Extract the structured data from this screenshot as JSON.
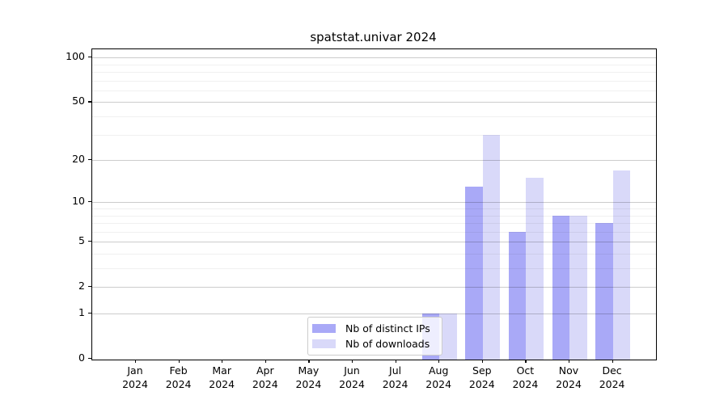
{
  "title": "spatstat.univar 2024",
  "legend": {
    "items": [
      {
        "label": "Nb of distinct IPs",
        "color": "#a9a9f7"
      },
      {
        "label": "Nb of downloads",
        "color": "#d9d9f9"
      }
    ]
  },
  "axes": {
    "y_tick_labels": [
      "0",
      "1",
      "2",
      "5",
      "10",
      "20",
      "50",
      "100"
    ],
    "y_tick_values": [
      0,
      1,
      2,
      5,
      10,
      20,
      50,
      100
    ],
    "y_minor_values": [
      3,
      4,
      6,
      7,
      8,
      9,
      30,
      40,
      60,
      70,
      80,
      90
    ],
    "x_tick_labels": [
      [
        "Jan",
        "2024"
      ],
      [
        "Feb",
        "2024"
      ],
      [
        "Mar",
        "2024"
      ],
      [
        "Apr",
        "2024"
      ],
      [
        "May",
        "2024"
      ],
      [
        "Jun",
        "2024"
      ],
      [
        "Jul",
        "2024"
      ],
      [
        "Aug",
        "2024"
      ],
      [
        "Sep",
        "2024"
      ],
      [
        "Oct",
        "2024"
      ],
      [
        "Nov",
        "2024"
      ],
      [
        "Dec",
        "2024"
      ]
    ]
  },
  "chart_data": {
    "type": "bar",
    "title": "spatstat.univar 2024",
    "categories": [
      "Jan 2024",
      "Feb 2024",
      "Mar 2024",
      "Apr 2024",
      "May 2024",
      "Jun 2024",
      "Jul 2024",
      "Aug 2024",
      "Sep 2024",
      "Oct 2024",
      "Nov 2024",
      "Dec 2024"
    ],
    "series": [
      {
        "name": "Nb of distinct IPs",
        "color": "#a9a9f7",
        "values": [
          0,
          0,
          0,
          0,
          0,
          0,
          0,
          1,
          13,
          6,
          8,
          7
        ]
      },
      {
        "name": "Nb of downloads",
        "color": "#d9d9f9",
        "values": [
          0,
          0,
          0,
          0,
          0,
          0,
          0,
          1,
          30,
          15,
          8,
          17
        ]
      }
    ],
    "xlabel": "",
    "ylabel": "",
    "yscale": "log10(1+x)",
    "y_ticks": [
      0,
      1,
      2,
      5,
      10,
      20,
      50,
      100
    ],
    "ylim": [
      0,
      113
    ],
    "grid": true,
    "legend_position": "inside lower center"
  }
}
